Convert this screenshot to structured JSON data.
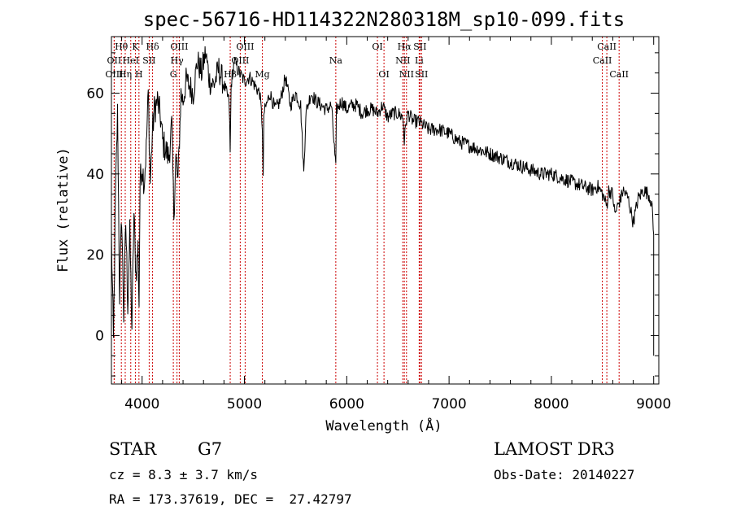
{
  "chart_data": {
    "type": "line",
    "title": "spec-56716-HD114322N280318M_sp10-099.fits",
    "xlabel": "Wavelength (Å)",
    "ylabel": "Flux (relative)",
    "xlim": [
      3700,
      9050
    ],
    "ylim": [
      -12,
      74
    ],
    "xticks": [
      4000,
      5000,
      6000,
      7000,
      8000,
      9000
    ],
    "yticks": [
      0,
      20,
      40,
      60
    ],
    "series": [
      {
        "name": "flux",
        "x": [
          3700,
          3720,
          3740,
          3760,
          3780,
          3800,
          3820,
          3840,
          3860,
          3880,
          3900,
          3920,
          3940,
          3960,
          3970,
          3980,
          4000,
          4020,
          4040,
          4060,
          4080,
          4100,
          4120,
          4150,
          4180,
          4200,
          4230,
          4260,
          4290,
          4310,
          4330,
          4350,
          4380,
          4400,
          4430,
          4460,
          4500,
          4540,
          4580,
          4620,
          4660,
          4700,
          4750,
          4800,
          4850,
          4861,
          4870,
          4900,
          4950,
          5000,
          5050,
          5100,
          5150,
          5175,
          5183,
          5190,
          5250,
          5300,
          5350,
          5400,
          5450,
          5500,
          5550,
          5580,
          5600,
          5650,
          5700,
          5750,
          5800,
          5850,
          5893,
          5900,
          5950,
          6000,
          6050,
          6100,
          6150,
          6200,
          6250,
          6300,
          6350,
          6400,
          6450,
          6500,
          6550,
          6563,
          6580,
          6600,
          6650,
          6700,
          6750,
          6800,
          6900,
          7000,
          7100,
          7200,
          7300,
          7400,
          7500,
          7600,
          7700,
          7800,
          7900,
          8000,
          8100,
          8200,
          8300,
          8400,
          8450,
          8500,
          8542,
          8560,
          8600,
          8620,
          8662,
          8680,
          8700,
          8750,
          8800,
          8850,
          8900,
          8950,
          8980,
          9000
        ],
        "values": [
          25,
          -2,
          35,
          55,
          10,
          30,
          5,
          28,
          8,
          25,
          2,
          30,
          15,
          22,
          8,
          38,
          42,
          38,
          46,
          60,
          38,
          50,
          56,
          58,
          54,
          48,
          46,
          44,
          52,
          30,
          44,
          38,
          60,
          58,
          63,
          62,
          60,
          68,
          65,
          70,
          63,
          62,
          66,
          62,
          58,
          45,
          62,
          68,
          65,
          63,
          64,
          62,
          60,
          52,
          38,
          55,
          60,
          56,
          58,
          64,
          57,
          60,
          57,
          40,
          55,
          60,
          58,
          57,
          56,
          57,
          41,
          56,
          58,
          56,
          57,
          57,
          55,
          56,
          56,
          55,
          57,
          54,
          55,
          55,
          54,
          48,
          53,
          55,
          53,
          53,
          52,
          51,
          51,
          50,
          48,
          47,
          46,
          45,
          44,
          43,
          42,
          41,
          40,
          40,
          39,
          38,
          37,
          36,
          37,
          35,
          32,
          36,
          35,
          30,
          33,
          34,
          36,
          34,
          28,
          34,
          36,
          35,
          33,
          25
        ]
      }
    ],
    "lines": [
      {
        "name": "Hθ",
        "x": 3797,
        "row": 1
      },
      {
        "name": "OII",
        "x": 3727,
        "row": 2
      },
      {
        "name": "OIII",
        "x": 3727,
        "row": 3
      },
      {
        "name": "K",
        "x": 3934,
        "row": 1
      },
      {
        "name": "HeI",
        "x": 3889,
        "row": 2
      },
      {
        "name": "Hη",
        "x": 3835,
        "row": 3
      },
      {
        "name": "H",
        "x": 3969,
        "row": 3
      },
      {
        "name": "Hδ",
        "x": 4102,
        "row": 1
      },
      {
        "name": "SII",
        "x": 4069,
        "row": 2
      },
      {
        "name": "OIII",
        "x": 4363,
        "row": 1
      },
      {
        "name": "Hγ",
        "x": 4341,
        "row": 2
      },
      {
        "name": "G",
        "x": 4305,
        "row": 3
      },
      {
        "name": "OIII",
        "x": 5007,
        "row": 1
      },
      {
        "name": "OIII",
        "x": 4959,
        "row": 2
      },
      {
        "name": "Hβ",
        "x": 4861,
        "row": 3
      },
      {
        "name": "Mg",
        "x": 5175,
        "row": 3
      },
      {
        "name": "Na",
        "x": 5893,
        "row": 2
      },
      {
        "name": "OI",
        "x": 6300,
        "row": 1
      },
      {
        "name": "OI",
        "x": 6364,
        "row": 3
      },
      {
        "name": "Hα",
        "x": 6563,
        "row": 1
      },
      {
        "name": "SII",
        "x": 6716,
        "row": 1
      },
      {
        "name": "NII",
        "x": 6548,
        "row": 2
      },
      {
        "name": "Li",
        "x": 6708,
        "row": 2
      },
      {
        "name": "NII",
        "x": 6584,
        "row": 3
      },
      {
        "name": "SII",
        "x": 6731,
        "row": 3
      },
      {
        "name": "CaII",
        "x": 8542,
        "row": 1
      },
      {
        "name": "CaII",
        "x": 8498,
        "row": 2
      },
      {
        "name": "CaII",
        "x": 8662,
        "row": 3
      }
    ]
  },
  "info": {
    "object_class": "STAR",
    "subclass": "G7",
    "survey": "LAMOST DR3",
    "cz": "cz = 8.3 ± 3.7 km/s",
    "obs_date": "Obs-Date: 20140227",
    "coords": "RA = 173.37619, DEC =  27.42797"
  },
  "colors": {
    "line_marker": "#cc0000",
    "spectrum": "#000000"
  }
}
